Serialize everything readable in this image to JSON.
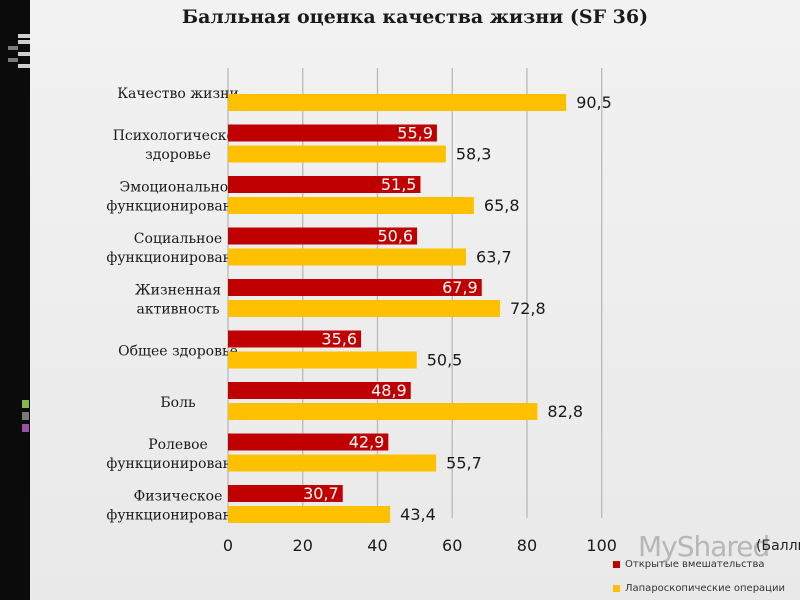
{
  "title": "Балльная оценка качества жизни (SF 36)",
  "watermark": "MyShared",
  "colors": {
    "series1": "#c00000",
    "series2": "#ffc000",
    "grid": "#b9b9b9"
  },
  "chart_data": {
    "type": "bar",
    "orientation": "horizontal",
    "title": "Балльная оценка качества жизни (SF 36)",
    "xlabel": "(Баллы)",
    "xlim": [
      0,
      100
    ],
    "x_ticks": [
      0,
      20,
      40,
      60,
      80,
      100
    ],
    "grid": true,
    "legend_position": "bottom-right",
    "categories": [
      [
        "Качество жизни"
      ],
      [
        "Психологическое",
        "здоровье"
      ],
      [
        "Эмоциональное",
        "функционирование"
      ],
      [
        "Социальное",
        "функционирование"
      ],
      [
        "Жизненная",
        "активность"
      ],
      [
        "Общее здоровье"
      ],
      [
        "Боль"
      ],
      [
        "Ролевое",
        "функционирование"
      ],
      [
        "Физическое",
        "функционирование"
      ]
    ],
    "series": [
      {
        "name": "Открытые вмешательства",
        "values": [
          null,
          55.9,
          51.5,
          50.6,
          67.9,
          35.6,
          48.9,
          42.9,
          30.7
        ],
        "labels": [
          "",
          "55,9",
          "51,5",
          "50,6",
          "67,9",
          "35,6",
          "48,9",
          "42,9",
          "30,7"
        ]
      },
      {
        "name": "Лапароскопические операции",
        "values": [
          90.5,
          58.3,
          65.8,
          63.7,
          72.8,
          50.5,
          82.8,
          55.7,
          43.4
        ],
        "labels": [
          "90,5",
          "58,3",
          "65,8",
          "63,7",
          "72,8",
          "50,5",
          "82,8",
          "55,7",
          "43,4"
        ]
      }
    ]
  }
}
